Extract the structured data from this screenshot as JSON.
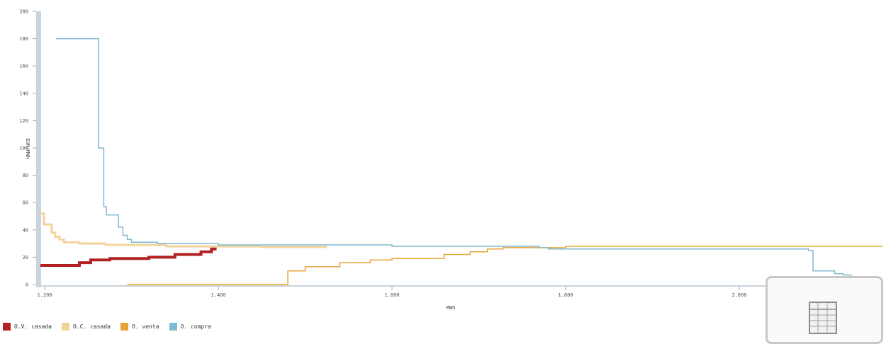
{
  "chart_data": {
    "type": "line",
    "title": "",
    "xlabel": "MWh",
    "ylabel": "EUR/MWh",
    "xlim": [
      1195,
      2165
    ],
    "ylim": [
      0,
      200
    ],
    "x_ticks": [
      1200,
      1400,
      1600,
      1800,
      2000
    ],
    "x_tick_labels": [
      "1.200",
      "1.400",
      "1.600",
      "1.800",
      "2.000"
    ],
    "y_ticks": [
      0,
      20,
      40,
      60,
      80,
      100,
      120,
      140,
      160,
      180,
      200
    ],
    "y_tick_labels": [
      "0",
      "20",
      "40",
      "60",
      "80",
      "100",
      "120",
      "140",
      "160",
      "180",
      "200"
    ],
    "grid": false,
    "legend_position": "bottom-left",
    "series": [
      {
        "name": "O.V. casada",
        "color": "#b22222",
        "width": 4,
        "points": [
          [
            1195,
            14
          ],
          [
            1240,
            14
          ],
          [
            1240,
            16
          ],
          [
            1253,
            16
          ],
          [
            1253,
            18
          ],
          [
            1275,
            18
          ],
          [
            1275,
            19
          ],
          [
            1320,
            19
          ],
          [
            1320,
            20
          ],
          [
            1350,
            20
          ],
          [
            1350,
            22
          ],
          [
            1380,
            22
          ],
          [
            1380,
            24
          ],
          [
            1392,
            24
          ],
          [
            1392,
            26
          ],
          [
            1398,
            26
          ]
        ]
      },
      {
        "name": "O.C. casada",
        "color": "#f2d49b",
        "width": 3,
        "points": [
          [
            1196,
            52
          ],
          [
            1199,
            52
          ],
          [
            1199,
            44
          ],
          [
            1208,
            44
          ],
          [
            1208,
            38
          ],
          [
            1212,
            38
          ],
          [
            1212,
            35
          ],
          [
            1217,
            35
          ],
          [
            1217,
            33
          ],
          [
            1222,
            33
          ],
          [
            1222,
            31
          ],
          [
            1240,
            31
          ],
          [
            1240,
            30
          ],
          [
            1270,
            30
          ],
          [
            1270,
            29
          ],
          [
            1340,
            29
          ],
          [
            1340,
            28
          ],
          [
            1450,
            28
          ],
          [
            1450,
            27.5
          ],
          [
            1525,
            27.5
          ]
        ]
      },
      {
        "name": "O. venta",
        "color": "#e8a33a",
        "width": 1.5,
        "points": [
          [
            1295,
            0
          ],
          [
            1480,
            0
          ],
          [
            1480,
            10
          ],
          [
            1500,
            10
          ],
          [
            1500,
            13
          ],
          [
            1540,
            13
          ],
          [
            1540,
            16
          ],
          [
            1575,
            16
          ],
          [
            1575,
            18
          ],
          [
            1600,
            18
          ],
          [
            1600,
            19
          ],
          [
            1660,
            19
          ],
          [
            1660,
            22
          ],
          [
            1690,
            22
          ],
          [
            1690,
            24
          ],
          [
            1710,
            24
          ],
          [
            1710,
            26
          ],
          [
            1728,
            26
          ],
          [
            1728,
            27
          ],
          [
            1800,
            27
          ],
          [
            1800,
            28
          ],
          [
            2180,
            28
          ],
          [
            2180,
            29
          ],
          [
            2200,
            29
          ]
        ]
      },
      {
        "name": "O. compra",
        "color": "#7fb9d1",
        "width": 1.5,
        "points": [
          [
            1213,
            180
          ],
          [
            1262,
            180
          ],
          [
            1262,
            100
          ],
          [
            1268,
            100
          ],
          [
            1268,
            57
          ],
          [
            1271,
            57
          ],
          [
            1271,
            51
          ],
          [
            1285,
            51
          ],
          [
            1285,
            42
          ],
          [
            1290,
            42
          ],
          [
            1290,
            36
          ],
          [
            1295,
            36
          ],
          [
            1295,
            33
          ],
          [
            1300,
            33
          ],
          [
            1300,
            31
          ],
          [
            1330,
            31
          ],
          [
            1330,
            30
          ],
          [
            1400,
            30
          ],
          [
            1400,
            29
          ],
          [
            1600,
            29
          ],
          [
            1600,
            28
          ],
          [
            1770,
            28
          ],
          [
            1770,
            27
          ],
          [
            1780,
            27
          ],
          [
            1780,
            26
          ],
          [
            2080,
            26
          ],
          [
            2080,
            25
          ],
          [
            2085,
            25
          ],
          [
            2085,
            10
          ],
          [
            2110,
            10
          ],
          [
            2110,
            8
          ],
          [
            2120,
            8
          ],
          [
            2120,
            7
          ],
          [
            2130,
            7
          ]
        ]
      }
    ]
  },
  "legend": [
    {
      "label": "O.V. casada",
      "color": "#b22222"
    },
    {
      "label": "O.C. casada",
      "color": "#f2d49b"
    },
    {
      "label": "O. venta",
      "color": "#e8a33a"
    },
    {
      "label": "O. compra",
      "color": "#7fb9d1"
    }
  ],
  "export": {
    "icon": "spreadsheet-export-icon"
  }
}
